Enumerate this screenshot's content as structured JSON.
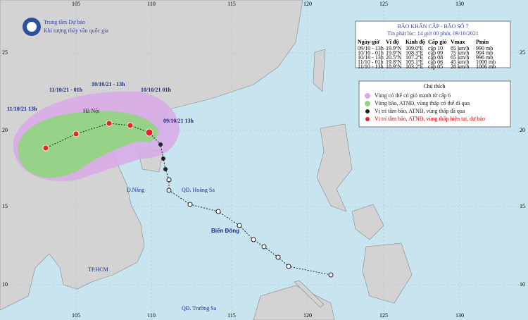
{
  "header": {
    "agency": "Trung tâm Dự báo",
    "agency_sub": "Khí tượng thủy văn quốc gia"
  },
  "bulletin": {
    "title": "BÃO KHẨN CẤP - BÃO SỐ 7",
    "issued": "Tin phát lúc: 14 giờ 00 phút, 09/10/2021",
    "columns": [
      "Ngày-giờ",
      "Vĩ độ",
      "Kinh độ",
      "Cấp gió",
      "Vmax",
      "Pmin"
    ],
    "rows": [
      [
        "09/10 - 13h",
        "19.9ºN",
        "109.0ºE",
        "cấp 10",
        "85 km/h",
        "990 mb"
      ],
      [
        "10/10 - 01h",
        "19.9ºN",
        "108.3ºE",
        "cấp 09",
        "75 km/h",
        "994 mb"
      ],
      [
        "10/10 - 13h",
        "20.5ºN",
        "107.2ºE",
        "cấp 08",
        "65 km/h",
        "996 mb"
      ],
      [
        "11/10 - 01h",
        "19.8ºN",
        "105.1ºE",
        "cấp 06",
        "45 km/h",
        "1000 mb"
      ],
      [
        "11/10 - 13h",
        "18.9ºN",
        "103.2ºE",
        "cấp 05",
        "28 km/h",
        "1006 mb"
      ]
    ]
  },
  "legend": {
    "title": "Chú thích",
    "items": [
      "Vùng có thể có gió mạnh từ cấp 6",
      "Vùng bão, ATNĐ, vùng thấp có thể đi qua",
      "Vị trí tâm bão, ATNĐ, vùng thấp đã qua",
      "Vị trí tâm bão, ATNĐ, vùng thấp hiện tại, dự báo"
    ]
  },
  "map": {
    "lon_labels": [
      "105",
      "110",
      "115",
      "120",
      "125",
      "130"
    ],
    "lat_labels": [
      "25",
      "20",
      "15",
      "10"
    ],
    "track_labels": [
      "11/10/21 - 01h",
      "10/10/21 - 13h",
      "10/10/21  01h",
      "11/10/21  13h",
      "09/10/21  13h"
    ],
    "places": [
      "Hà Nội",
      "Đ.Nẵng",
      "QĐ. Hoàng Sa",
      "Biển Đông",
      "TP.HCM",
      "QĐ. Trường Sa"
    ]
  }
}
